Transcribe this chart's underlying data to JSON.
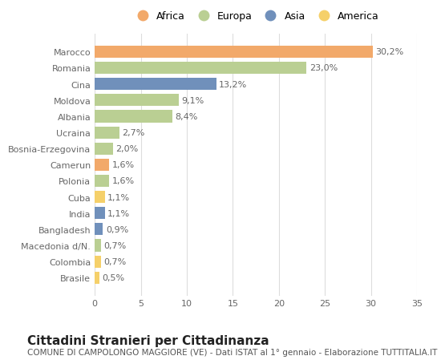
{
  "categories": [
    "Marocco",
    "Romania",
    "Cina",
    "Moldova",
    "Albania",
    "Ucraina",
    "Bosnia-Erzegovina",
    "Camerun",
    "Polonia",
    "Cuba",
    "India",
    "Bangladesh",
    "Macedonia d/N.",
    "Colombia",
    "Brasile"
  ],
  "values": [
    30.2,
    23.0,
    13.2,
    9.1,
    8.4,
    2.7,
    2.0,
    1.6,
    1.6,
    1.1,
    1.1,
    0.9,
    0.7,
    0.7,
    0.5
  ],
  "labels": [
    "30,2%",
    "23,0%",
    "13,2%",
    "9,1%",
    "8,4%",
    "2,7%",
    "2,0%",
    "1,6%",
    "1,6%",
    "1,1%",
    "1,1%",
    "0,9%",
    "0,7%",
    "0,7%",
    "0,5%"
  ],
  "continents": [
    "Africa",
    "Europa",
    "Asia",
    "Europa",
    "Europa",
    "Europa",
    "Europa",
    "Africa",
    "Europa",
    "America",
    "Asia",
    "Asia",
    "Europa",
    "America",
    "America"
  ],
  "continent_colors": {
    "Africa": "#F2A96A",
    "Europa": "#BACF93",
    "Asia": "#7090BB",
    "America": "#F5D06A"
  },
  "legend_order": [
    "Africa",
    "Europa",
    "Asia",
    "America"
  ],
  "legend_colors": [
    "#F2A96A",
    "#BACF93",
    "#7090BB",
    "#F5D06A"
  ],
  "title": "Cittadini Stranieri per Cittadinanza",
  "subtitle": "COMUNE DI CAMPOLONGO MAGGIORE (VE) - Dati ISTAT al 1° gennaio - Elaborazione TUTTITALIA.IT",
  "xlim": [
    0,
    35
  ],
  "xticks": [
    0,
    5,
    10,
    15,
    20,
    25,
    30,
    35
  ],
  "background_color": "#ffffff",
  "grid_color": "#dddddd",
  "bar_height": 0.75,
  "title_fontsize": 11,
  "subtitle_fontsize": 7.5,
  "tick_fontsize": 8,
  "label_fontsize": 8,
  "legend_fontsize": 9
}
